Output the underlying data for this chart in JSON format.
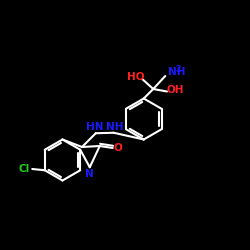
{
  "bg": "#000000",
  "bc": "#ffffff",
  "NC": "#1a1aff",
  "OC": "#ff2020",
  "ClC": "#20cc20",
  "fw": 2.5,
  "fh": 2.5,
  "dpi": 100,
  "lw": 1.5,
  "fs": 7.5,
  "fs2": 5.5,
  "xlim": [
    0,
    10
  ],
  "ylim": [
    0,
    10
  ]
}
